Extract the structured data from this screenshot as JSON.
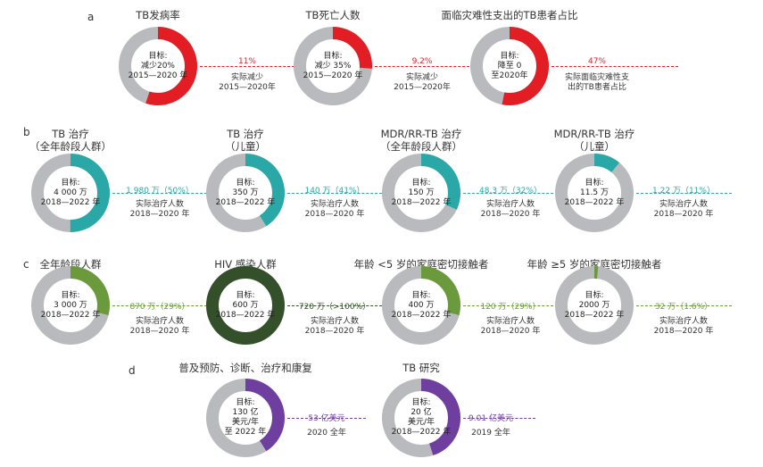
{
  "colors": {
    "track": "#b8babd",
    "red": "#e31d24",
    "teal": "#2aa7a7",
    "green": "#6a9a3c",
    "darkgreen": "#33502a",
    "purple": "#6f3fa0"
  },
  "chart_data": [
    {
      "type": "pie",
      "section": "a",
      "title": "TB发病率",
      "target": [
        "目标:",
        "减少20%",
        "2015—2020 年"
      ],
      "progress_fraction": 0.55,
      "value_label": "11%",
      "actual_label": [
        "实际减少",
        "2015—2020年"
      ],
      "color": "red"
    },
    {
      "type": "pie",
      "section": "a",
      "title": "TB死亡人数",
      "target": [
        "目标:",
        "减少 35%",
        "2015—2020 年"
      ],
      "progress_fraction": 0.26,
      "value_label": "9.2%",
      "actual_label": [
        "实际减少",
        "2015—2020年"
      ],
      "color": "red"
    },
    {
      "type": "pie",
      "section": "a",
      "title": "面临灾难性支出的TB患者占比",
      "target": [
        "目标:",
        "降至 0",
        "至2020年"
      ],
      "progress_fraction": 0.53,
      "value_label": "47%",
      "actual_label": [
        "实际面临灾难性支",
        "出的TB患者占比"
      ],
      "color": "red"
    },
    {
      "type": "pie",
      "section": "b",
      "title": "TB 治疗",
      "subtitle": "（全年龄段人群）",
      "target": [
        "目标:",
        "4 000 万",
        "2018—2022 年"
      ],
      "progress_fraction": 0.5,
      "value_label": "1 980 万（50%）",
      "actual_label": [
        "实际治疗人数",
        "2018—2020 年"
      ],
      "color": "teal"
    },
    {
      "type": "pie",
      "section": "b",
      "title": "TB 治疗",
      "subtitle": "（儿童）",
      "target": [
        "目标:",
        "350 万",
        "2018—2022 年"
      ],
      "progress_fraction": 0.41,
      "value_label": "140 万（41%）",
      "actual_label": [
        "实际治疗人数",
        "2018—2020 年"
      ],
      "color": "teal"
    },
    {
      "type": "pie",
      "section": "b",
      "title": "MDR/RR-TB 治疗",
      "subtitle": "（全年龄段人群）",
      "target": [
        "目标:",
        "150 万",
        "2018—2022 年"
      ],
      "progress_fraction": 0.32,
      "value_label": "48.3 万（32%）",
      "actual_label": [
        "实际治疗人数",
        "2018—2020 年"
      ],
      "color": "teal"
    },
    {
      "type": "pie",
      "section": "b",
      "title": "MDR/RR-TB 治疗",
      "subtitle": "（儿童）",
      "target": [
        "目标:",
        "11.5 万",
        "2018—2022 年"
      ],
      "progress_fraction": 0.11,
      "value_label": "1.22 万（11%）",
      "actual_label": [
        "实际治疗人数",
        "2018—2020 年"
      ],
      "color": "teal"
    },
    {
      "type": "pie",
      "section": "c",
      "title": "全年龄段人群",
      "target": [
        "目标:",
        "3 000 万",
        "2018—2022 年"
      ],
      "progress_fraction": 0.29,
      "value_label": "870 万（29%）",
      "actual_label": [
        "实际治疗人数",
        "2018—2020 年"
      ],
      "color": "green"
    },
    {
      "type": "pie",
      "section": "c",
      "title": "HIV 感染人群",
      "target": [
        "目标:",
        "600 万",
        "2018—2022 年"
      ],
      "progress_fraction": 1.0,
      "value_label": "720 万（>100%）",
      "actual_label": [
        "实际治疗人数",
        "2018—2020 年"
      ],
      "color": "darkgreen"
    },
    {
      "type": "pie",
      "section": "c",
      "title": "年龄 <5 岁的家庭密切接触者",
      "target": [
        "目标:",
        "400 万",
        "2018—2022 年"
      ],
      "progress_fraction": 0.29,
      "value_label": "120 万（29%）",
      "actual_label": [
        "实际治疗人数",
        "2018—2020 年"
      ],
      "color": "green"
    },
    {
      "type": "pie",
      "section": "c",
      "title": "年龄 ≥5 岁的家庭密切接触者",
      "target": [
        "目标:",
        "2000 万",
        "2018—2022 年"
      ],
      "progress_fraction": 0.016,
      "value_label": "32 万（1.6%）",
      "actual_label": [
        "实际治疗人数",
        "2018—2020 年"
      ],
      "color": "green"
    },
    {
      "type": "pie",
      "section": "d",
      "title": "普及预防、诊断、治疗和康复",
      "target": [
        "目标:",
        "130 亿",
        "美元/年",
        "至 2022 年"
      ],
      "progress_fraction": 0.41,
      "value_label": "53 亿美元",
      "actual_label": [
        "2020 全年"
      ],
      "color": "purple"
    },
    {
      "type": "pie",
      "section": "d",
      "title": "TB 研究",
      "target": [
        "目标:",
        "20 亿",
        "美元/年",
        "2018—2022 年"
      ],
      "progress_fraction": 0.45,
      "value_label": "9.01 亿美元",
      "actual_label": [
        "2019 全年"
      ],
      "color": "purple"
    }
  ],
  "section_labels": [
    "a",
    "b",
    "c",
    "d"
  ]
}
